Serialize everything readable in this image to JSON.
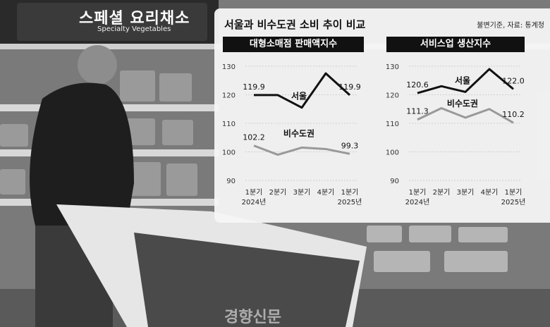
{
  "background": {
    "sign_text": "스페셜 요리채소",
    "sign_subtext": "Specialty Vegetables",
    "watermark": "경향신문"
  },
  "panel": {
    "title": "서울과 비수도권 소비 추이 비교",
    "note": "불변기준, 자료: 통계청"
  },
  "chart_data": [
    {
      "type": "line",
      "title": "대형소매점 판매액지수",
      "categories": [
        "1분기\n2024년",
        "2분기",
        "3분기",
        "4분기",
        "1분기\n2025년"
      ],
      "ylim": [
        90,
        130
      ],
      "yticks": [
        90,
        100,
        110,
        120,
        130
      ],
      "series": [
        {
          "name": "서울",
          "values": [
            119.9,
            119.9,
            115.5,
            127.5,
            119.9
          ],
          "labels": [
            "119.9",
            "",
            "",
            "",
            "119.9"
          ],
          "color": "#111111"
        },
        {
          "name": "비수도권",
          "values": [
            102.2,
            99.0,
            101.5,
            101.0,
            99.3
          ],
          "labels": [
            "102.2",
            "",
            "",
            "",
            "99.3"
          ],
          "color": "#999999"
        }
      ],
      "grid": true
    },
    {
      "type": "line",
      "title": "서비스업 생산지수",
      "categories": [
        "1분기\n2024년",
        "2분기",
        "3분기",
        "4분기",
        "1분기\n2025년"
      ],
      "ylim": [
        90,
        130
      ],
      "yticks": [
        90,
        100,
        110,
        120,
        130
      ],
      "series": [
        {
          "name": "서울",
          "values": [
            120.6,
            123.0,
            121.0,
            129.0,
            122.0
          ],
          "labels": [
            "120.6",
            "",
            "",
            "",
            "122.0"
          ],
          "color": "#111111"
        },
        {
          "name": "비수도권",
          "values": [
            111.3,
            115.3,
            112.0,
            115.0,
            110.2
          ],
          "labels": [
            "111.3",
            "",
            "",
            "",
            "110.2"
          ],
          "color": "#999999"
        }
      ],
      "grid": true
    }
  ]
}
